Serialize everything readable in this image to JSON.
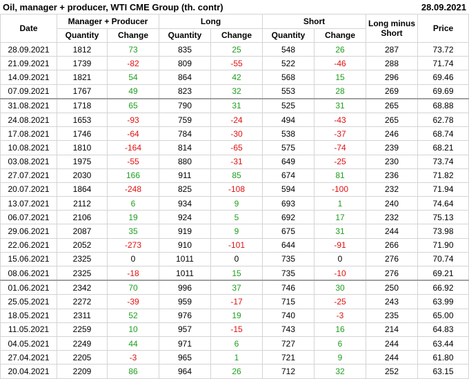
{
  "header": {
    "title": "Oil, manager + producer, WTI CME Group (th. contr)",
    "date": "28.09.2021"
  },
  "table": {
    "header_row_1": [
      "Date",
      "Manager + Producer",
      "Long",
      "Short",
      "Long minus Short",
      "Price"
    ],
    "header_row_2": [
      "Quantity",
      "Change",
      "Quantity",
      "Change",
      "Quantity",
      "Change"
    ],
    "rows": [
      [
        "28.09.2021",
        "1812",
        "73",
        "835",
        "25",
        "548",
        "26",
        "287",
        "73.72"
      ],
      [
        "21.09.2021",
        "1739",
        "-82",
        "809",
        "-55",
        "522",
        "-46",
        "288",
        "71.74"
      ],
      [
        "14.09.2021",
        "1821",
        "54",
        "864",
        "42",
        "568",
        "15",
        "296",
        "69.46"
      ],
      [
        "07.09.2021",
        "1767",
        "49",
        "823",
        "32",
        "553",
        "28",
        "269",
        "69.69"
      ],
      [
        "31.08.2021",
        "1718",
        "65",
        "790",
        "31",
        "525",
        "31",
        "265",
        "68.88"
      ],
      [
        "24.08.2021",
        "1653",
        "-93",
        "759",
        "-24",
        "494",
        "-43",
        "265",
        "62.78"
      ],
      [
        "17.08.2021",
        "1746",
        "-64",
        "784",
        "-30",
        "538",
        "-37",
        "246",
        "68.74"
      ],
      [
        "10.08.2021",
        "1810",
        "-164",
        "814",
        "-65",
        "575",
        "-74",
        "239",
        "68.21"
      ],
      [
        "03.08.2021",
        "1975",
        "-55",
        "880",
        "-31",
        "649",
        "-25",
        "230",
        "73.74"
      ],
      [
        "27.07.2021",
        "2030",
        "166",
        "911",
        "85",
        "674",
        "81",
        "236",
        "71.82"
      ],
      [
        "20.07.2021",
        "1864",
        "-248",
        "825",
        "-108",
        "594",
        "-100",
        "232",
        "71.94"
      ],
      [
        "13.07.2021",
        "2112",
        "6",
        "934",
        "9",
        "693",
        "1",
        "240",
        "74.64"
      ],
      [
        "06.07.2021",
        "2106",
        "19",
        "924",
        "5",
        "692",
        "17",
        "232",
        "75.13"
      ],
      [
        "29.06.2021",
        "2087",
        "35",
        "919",
        "9",
        "675",
        "31",
        "244",
        "73.98"
      ],
      [
        "22.06.2021",
        "2052",
        "-273",
        "910",
        "-101",
        "644",
        "-91",
        "266",
        "71.90"
      ],
      [
        "15.06.2021",
        "2325",
        "0",
        "1011",
        "0",
        "735",
        "0",
        "276",
        "70.74"
      ],
      [
        "08.06.2021",
        "2325",
        "-18",
        "1011",
        "15",
        "735",
        "-10",
        "276",
        "69.21"
      ],
      [
        "01.06.2021",
        "2342",
        "70",
        "996",
        "37",
        "746",
        "30",
        "250",
        "66.92"
      ],
      [
        "25.05.2021",
        "2272",
        "-39",
        "959",
        "-17",
        "715",
        "-25",
        "243",
        "63.99"
      ],
      [
        "18.05.2021",
        "2311",
        "52",
        "976",
        "19",
        "740",
        "-3",
        "235",
        "65.00"
      ],
      [
        "11.05.2021",
        "2259",
        "10",
        "957",
        "-15",
        "743",
        "16",
        "214",
        "64.83"
      ],
      [
        "04.05.2021",
        "2249",
        "44",
        "971",
        "6",
        "727",
        "6",
        "244",
        "63.44"
      ],
      [
        "27.04.2021",
        "2205",
        "-3",
        "965",
        "1",
        "721",
        "9",
        "244",
        "61.80"
      ],
      [
        "20.04.2021",
        "2209",
        "86",
        "964",
        "26",
        "712",
        "32",
        "252",
        "63.15"
      ]
    ]
  }
}
